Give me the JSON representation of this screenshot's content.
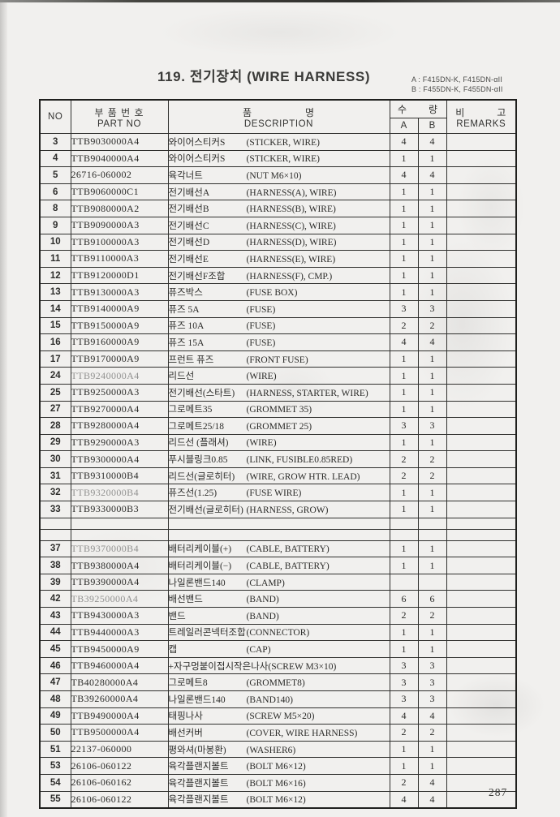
{
  "page": {
    "title": "119. 전기장치 (WIRE HARNESS)",
    "model_note_a": "A : F415DN-K, F415DN-αII",
    "model_note_b": "B : F455DN-K, F455DN-αII",
    "page_number": "287"
  },
  "table": {
    "headers": {
      "no": "NO",
      "part_kr": "부 품 번 호",
      "part_en": "PART NO",
      "desc_kr": "품　　　　　명",
      "desc_en": "DESCRIPTION",
      "qty_kr": "수　　량",
      "qty_a": "A",
      "qty_b": "B",
      "remarks_kr": "비　　　고",
      "remarks_en": "REMARKS"
    },
    "rows": [
      {
        "no": "3",
        "part": "TTB9030000A4",
        "kr": "와이어스티커S",
        "en": "(STICKER, WIRE)",
        "a": "4",
        "b": "4"
      },
      {
        "no": "4",
        "part": "TTB9040000A4",
        "kr": "와이어스티커S",
        "en": "(STICKER, WIRE)",
        "a": "1",
        "b": "1"
      },
      {
        "no": "5",
        "part": "26716-060002",
        "kr": "육각너트",
        "en": "(NUT M6×10)",
        "a": "4",
        "b": "4"
      },
      {
        "no": "6",
        "part": "TTB9060000C1",
        "kr": "전기배선A",
        "en": "(HARNESS(A), WIRE)",
        "a": "1",
        "b": "1"
      },
      {
        "no": "8",
        "part": "TTB9080000A2",
        "kr": "전기배선B",
        "en": "(HARNESS(B), WIRE)",
        "a": "1",
        "b": "1"
      },
      {
        "no": "9",
        "part": "TTB9090000A3",
        "kr": "전기배선C",
        "en": "(HARNESS(C), WIRE)",
        "a": "1",
        "b": "1"
      },
      {
        "no": "10",
        "part": "TTB9100000A3",
        "kr": "전기배선D",
        "en": "(HARNESS(D), WIRE)",
        "a": "1",
        "b": "1"
      },
      {
        "no": "11",
        "part": "TTB9110000A3",
        "kr": "전기배선E",
        "en": "(HARNESS(E), WIRE)",
        "a": "1",
        "b": "1"
      },
      {
        "no": "12",
        "part": "TTB9120000D1",
        "kr": "전기배선F조합",
        "en": "(HARNESS(F), CMP.)",
        "a": "1",
        "b": "1"
      },
      {
        "no": "13",
        "part": "TTB9130000A3",
        "kr": "퓨즈박스",
        "en": "(FUSE BOX)",
        "a": "1",
        "b": "1"
      },
      {
        "no": "14",
        "part": "TTB9140000A9",
        "kr": "퓨즈 5A",
        "en": "(FUSE)",
        "a": "3",
        "b": "3"
      },
      {
        "no": "15",
        "part": "TTB9150000A9",
        "kr": "퓨즈 10A",
        "en": "(FUSE)",
        "a": "2",
        "b": "2"
      },
      {
        "no": "16",
        "part": "TTB9160000A9",
        "kr": "퓨즈 15A",
        "en": "(FUSE)",
        "a": "4",
        "b": "4"
      },
      {
        "no": "17",
        "part": "TTB9170000A9",
        "kr": "프런트 퓨즈",
        "en": "(FRONT FUSE)",
        "a": "1",
        "b": "1"
      },
      {
        "no": "24",
        "part": "TTB9240000A4",
        "kr": "리드선",
        "en": "(WIRE)",
        "a": "1",
        "b": "1",
        "faint": true
      },
      {
        "no": "25",
        "part": "TTB9250000A3",
        "kr": "전기배선(스타트) ",
        "en": "(HARNESS, STARTER, WIRE)",
        "a": "1",
        "b": "1"
      },
      {
        "no": "27",
        "part": "TTB9270000A4",
        "kr": "그로메트35",
        "en": "(GROMMET 35)",
        "a": "1",
        "b": "1"
      },
      {
        "no": "28",
        "part": "TTB9280000A4",
        "kr": "그로메트25/18",
        "en": "(GROMMET 25)",
        "a": "3",
        "b": "3"
      },
      {
        "no": "29",
        "part": "TTB9290000A3",
        "kr": "리드선 (플래셔)",
        "en": "(WIRE)",
        "a": "1",
        "b": "1"
      },
      {
        "no": "30",
        "part": "TTB9300000A4",
        "kr": "푸시블링크0.85",
        "en": "(LINK, FUSIBLE0.85RED)",
        "a": "2",
        "b": "2"
      },
      {
        "no": "31",
        "part": "TTB9310000B4",
        "kr": "리드선(글로히터)",
        "en": "(WIRE, GROW HTR. LEAD)",
        "a": "2",
        "b": "2"
      },
      {
        "no": "32",
        "part": "TTB9320000B4",
        "kr": "퓨즈선(1.25)",
        "en": "(FUSE  WIRE)",
        "a": "1",
        "b": "1",
        "faint": true
      },
      {
        "no": "33",
        "part": "TTB9330000B3",
        "kr": "전기배선(글로히터) ",
        "en": "(HARNESS, GROW)",
        "a": "1",
        "b": "1"
      },
      {
        "spacer": true
      },
      {
        "spacer": true
      },
      {
        "no": "37",
        "part": "TTB9370000B4",
        "kr": "배터리케이블(+)",
        "en": "(CABLE, BATTERY)",
        "a": "1",
        "b": "1",
        "faint": true
      },
      {
        "no": "38",
        "part": "TTB9380000A4",
        "kr": "배터리케이블(−)",
        "en": "(CABLE, BATTERY)",
        "a": "1",
        "b": "1"
      },
      {
        "no": "39",
        "part": "TTB9390000A4",
        "kr": "나일론밴드140",
        "en": "(CLAMP)",
        "a": "",
        "b": ""
      },
      {
        "no": "42",
        "part": "TB39250000A4",
        "kr": "배선밴드",
        "en": "(BAND)",
        "a": "6",
        "b": "6",
        "faint": true
      },
      {
        "no": "43",
        "part": "TTB9430000A3",
        "kr": "밴드",
        "en": "(BAND)",
        "a": "2",
        "b": "2"
      },
      {
        "no": "44",
        "part": "TTB9440000A3",
        "kr": "트레일러콘넥터조합 ",
        "en": "(CONNECTOR)",
        "a": "1",
        "b": "1"
      },
      {
        "no": "45",
        "part": "TTB9450000A9",
        "kr": "캡",
        "en": "(CAP)",
        "a": "1",
        "b": "1"
      },
      {
        "no": "46",
        "part": "TTB9460000A4",
        "kr": "+자구멍붙이접시작은나사",
        "en": "(SCREW M3×10)",
        "a": "3",
        "b": "3"
      },
      {
        "no": "47",
        "part": "TB40280000A4",
        "kr": "그로메트8",
        "en": "(GROMMET8)",
        "a": "3",
        "b": "3"
      },
      {
        "no": "48",
        "part": "TB39260000A4",
        "kr": "나일론밴드140",
        "en": "(BAND140)",
        "a": "3",
        "b": "3"
      },
      {
        "no": "49",
        "part": "TTB9490000A4",
        "kr": "태핑나사",
        "en": "(SCREW M5×20)",
        "a": "4",
        "b": "4"
      },
      {
        "no": "50",
        "part": "TTB9500000A4",
        "kr": "배선커버",
        "en": "(COVER, WIRE HARNESS)",
        "a": "2",
        "b": "2"
      },
      {
        "no": "51",
        "part": "22137-060000",
        "kr": "평와셔(마봉환)",
        "en": "(WASHER6)",
        "a": "1",
        "b": "1"
      },
      {
        "no": "53",
        "part": "26106-060122",
        "kr": "육각플랜지볼트",
        "en": "(BOLT M6×12)",
        "a": "1",
        "b": "1"
      },
      {
        "no": "54",
        "part": "26106-060162",
        "kr": "육각플랜지볼트",
        "en": "(BOLT M6×16)",
        "a": "2",
        "b": "4"
      },
      {
        "no": "55",
        "part": "26106-060122",
        "kr": "육각플랜지볼트",
        "en": "(BOLT M6×12)",
        "a": "4",
        "b": "4"
      }
    ]
  }
}
